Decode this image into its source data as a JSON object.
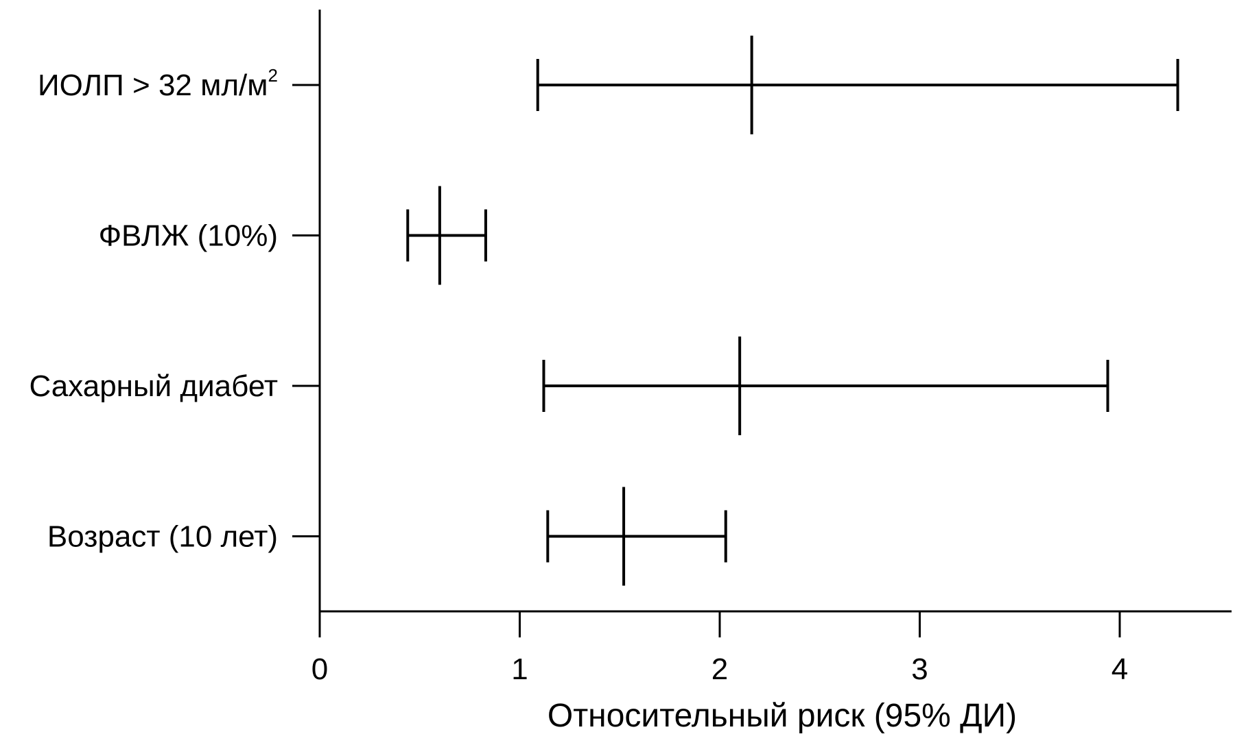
{
  "chart_data": {
    "type": "forest",
    "xlabel": "Относительный риск (95% ДИ)",
    "xlim": [
      0,
      4.5
    ],
    "xticks": [
      0,
      1,
      2,
      3,
      4
    ],
    "grid": false,
    "rows": [
      {
        "label": "ИОЛП > 32 мл/м",
        "label_sup": "2",
        "estimate": 2.16,
        "lower": 1.09,
        "upper": 4.29
      },
      {
        "label": "ФВЛЖ (10%)",
        "estimate": 0.6,
        "lower": 0.44,
        "upper": 0.83
      },
      {
        "label": "Сахарный диабет",
        "estimate": 2.1,
        "lower": 1.12,
        "upper": 3.94
      },
      {
        "label": "Возраст (10 лет)",
        "estimate": 1.52,
        "lower": 1.14,
        "upper": 2.03
      }
    ]
  }
}
